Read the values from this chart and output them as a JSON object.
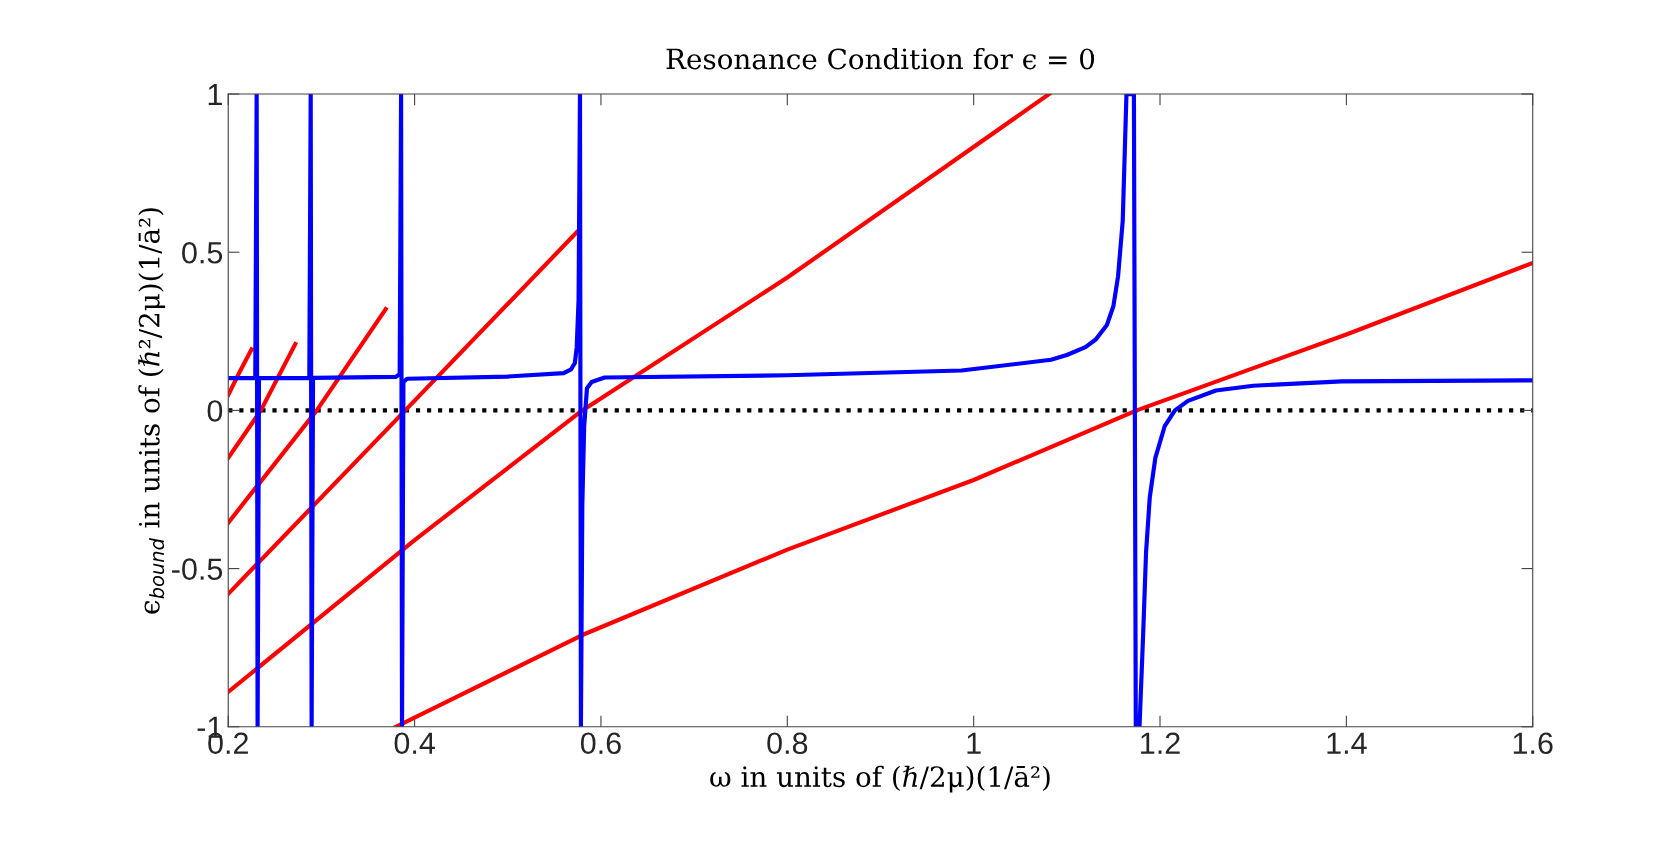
{
  "chart_data": {
    "type": "line",
    "title": "Resonance Condition for ϵ = 0",
    "xlabel": "ω in units of (ℏ/2μ)(1/ā²)",
    "ylabel": "ϵ$_{bound}$ in units of (ℏ²/2μ)(1/ā²)",
    "xlim": [
      0.2,
      1.6
    ],
    "ylim": [
      -1,
      1
    ],
    "xticks": [
      0.2,
      0.4,
      0.6,
      0.8,
      1,
      1.2,
      1.4,
      1.6
    ],
    "yticks": [
      -1,
      -0.5,
      0,
      0.5,
      1
    ],
    "grid": false,
    "marker": "none",
    "line_style": "solid",
    "ref_lines": [
      {
        "axis": "y",
        "value": 0,
        "color": "#000000",
        "line_style": "dotted"
      }
    ],
    "series": [
      {
        "color": "#ff0000",
        "x": [
          0.2,
          0.212,
          0.225
        ],
        "values": [
          0.049,
          0.12,
          0.193
        ]
      },
      {
        "color": "#ff0000",
        "x": [
          0.2,
          0.235,
          0.272
        ],
        "values": [
          -0.15,
          0,
          0.21
        ]
      },
      {
        "color": "#ff0000",
        "x": [
          0.2,
          0.295,
          0.369
        ],
        "values": [
          -0.355,
          0,
          0.32
        ]
      },
      {
        "color": "#ff0000",
        "x": [
          0.2,
          0.39,
          0.574
        ],
        "values": [
          -0.58,
          0,
          0.563
        ]
      },
      {
        "color": "#ff0000",
        "x": [
          0.2,
          0.4,
          0.58,
          0.8,
          1.081
        ],
        "values": [
          -0.89,
          -0.41,
          0,
          0.42,
          1
        ]
      },
      {
        "color": "#ff0000",
        "x": [
          0.38,
          0.58,
          0.8,
          1.0,
          1.175,
          1.4,
          1.6
        ],
        "values": [
          -1,
          -0.71,
          -0.44,
          -0.22,
          0,
          0.24,
          0.466
        ]
      },
      {
        "color": "#0000ff",
        "x": [
          0.2,
          0.229,
          0.2305,
          0.2315,
          0.233,
          0.287,
          0.2885,
          0.2895,
          0.291,
          0.38,
          0.384,
          0.3855,
          0.3865,
          0.388,
          0.392,
          0.5,
          0.56,
          0.568,
          0.572,
          0.574,
          0.576,
          0.5775,
          0.5785,
          0.58,
          0.582,
          0.585,
          0.59,
          0.604,
          0.8,
          0.987,
          1.083,
          1.1,
          1.12,
          1.131,
          1.143,
          1.15,
          1.155,
          1.16,
          1.164,
          1.172,
          1.174,
          1.178,
          1.182,
          1.185,
          1.189,
          1.195,
          1.205,
          1.216,
          1.23,
          1.26,
          1.3,
          1.395,
          1.6
        ],
        "values": [
          0.102,
          0.103,
          1,
          -1,
          0.102,
          0.103,
          1,
          -1,
          0.103,
          0.106,
          0.115,
          1,
          -1,
          0.09,
          0.1,
          0.107,
          0.118,
          0.13,
          0.15,
          0.2,
          0.35,
          1,
          -1,
          -0.3,
          -0.05,
          0.07,
          0.09,
          0.104,
          0.111,
          0.126,
          0.16,
          0.175,
          0.2,
          0.224,
          0.27,
          0.33,
          0.424,
          0.6,
          1,
          1,
          -1,
          -1,
          -0.7,
          -0.45,
          -0.275,
          -0.15,
          -0.05,
          0,
          0.03,
          0.063,
          0.078,
          0.092,
          0.095
        ]
      }
    ]
  }
}
